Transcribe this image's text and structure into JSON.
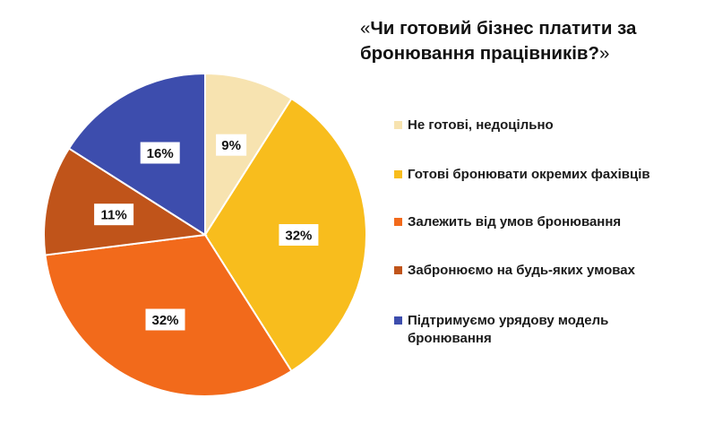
{
  "title": {
    "open_quote": "«",
    "text": "Чи готовий бізнес платити за бронювання працівників?",
    "close_quote": "»"
  },
  "chart_data": {
    "type": "pie",
    "start_angle_deg": 0,
    "direction": "clockwise",
    "slices": [
      {
        "label": "Не готові, недоцільно",
        "value": 9,
        "value_label": "9%",
        "color": "#F7E3B0"
      },
      {
        "label": "Готові бронювати окремих фахівців",
        "value": 32,
        "value_label": "32%",
        "color": "#F8BD1D"
      },
      {
        "label": "Залежить від умов бронювання",
        "value": 32,
        "value_label": "32%",
        "color": "#F26A1B"
      },
      {
        "label": "Забронюємо на будь-яких умовах",
        "value": 11,
        "value_label": "11%",
        "color": "#C0541A"
      },
      {
        "label": "Підтримуємо урядову модель бронювання",
        "value": 16,
        "value_label": "16%",
        "color": "#3D4DAD"
      }
    ],
    "legend_position": "right"
  }
}
